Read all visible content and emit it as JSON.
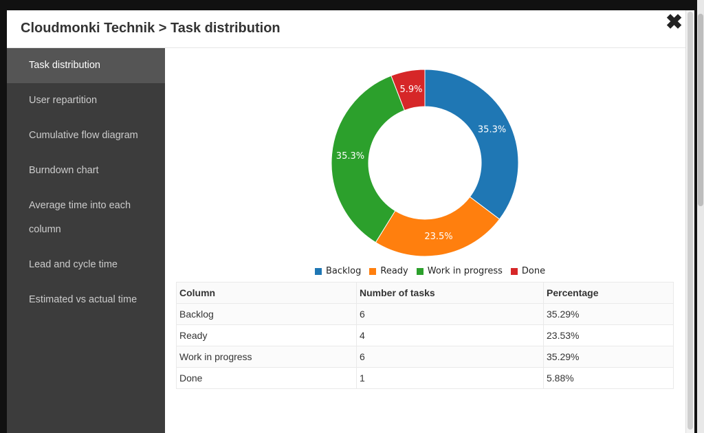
{
  "modal": {
    "title": "Cloudmonki Technik > Task distribution",
    "close_glyph": "✖"
  },
  "sidebar": {
    "items": [
      {
        "label": "Task distribution",
        "active": true
      },
      {
        "label": "User repartition",
        "active": false
      },
      {
        "label": "Cumulative flow diagram",
        "active": false
      },
      {
        "label": "Burndown chart",
        "active": false
      },
      {
        "label": "Average time into each column",
        "active": false
      },
      {
        "label": "Lead and cycle time",
        "active": false
      },
      {
        "label": "Estimated vs actual time",
        "active": false
      }
    ]
  },
  "chart_data": {
    "type": "pie",
    "donut": true,
    "categories": [
      "Backlog",
      "Ready",
      "Work in progress",
      "Done"
    ],
    "values": [
      6,
      4,
      6,
      1
    ],
    "labels": [
      "35.3%",
      "23.5%",
      "35.3%",
      "5.9%"
    ],
    "colors": [
      "#1f77b4",
      "#ff7f0e",
      "#2ca02c",
      "#d62728"
    ],
    "legend_position": "bottom"
  },
  "table": {
    "headers": [
      "Column",
      "Number of tasks",
      "Percentage"
    ],
    "rows": [
      [
        "Backlog",
        "6",
        "35.29%"
      ],
      [
        "Ready",
        "4",
        "23.53%"
      ],
      [
        "Work in progress",
        "6",
        "35.29%"
      ],
      [
        "Done",
        "1",
        "5.88%"
      ]
    ]
  }
}
